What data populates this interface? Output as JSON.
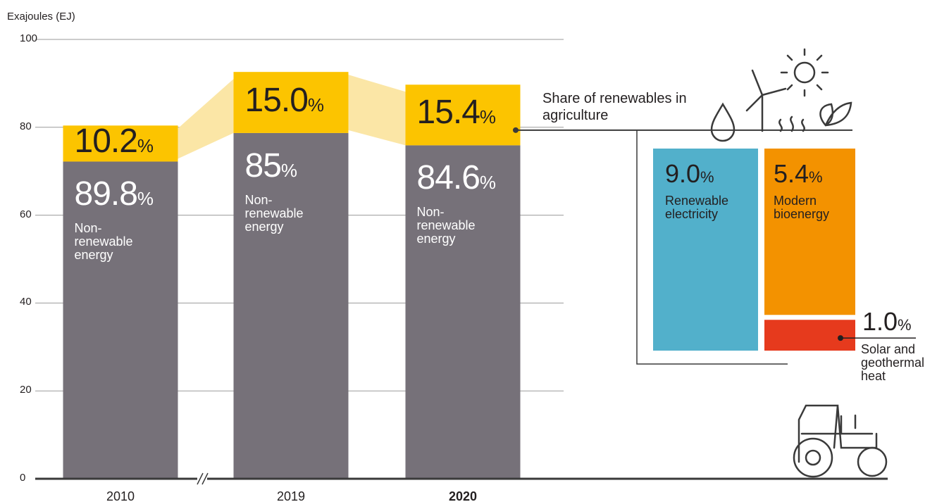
{
  "chart_data": {
    "type": "bar",
    "stacked": true,
    "y_label": "Exajoules (EJ)",
    "ylim": [
      0,
      100
    ],
    "yticks": [
      0,
      20,
      40,
      60,
      80,
      100
    ],
    "grid": true,
    "categories": [
      "2010",
      "2019",
      "2020"
    ],
    "bold_category": 2,
    "unit": "%",
    "connector_color": "#fbe6a6",
    "series": [
      {
        "name": "Non-renewable energy",
        "color": "#767179",
        "values": [
          72.2,
          78.7,
          75.9
        ],
        "share_labels": [
          "89.8",
          "85",
          "84.6"
        ]
      },
      {
        "color": "#fcc400",
        "values": [
          8.2,
          13.9,
          13.8
        ],
        "share_labels": [
          "10.2",
          "15.0",
          "15.4"
        ]
      }
    ],
    "breakdown": {
      "title": "Share of renewables in agriculture",
      "items": [
        {
          "value": 9.0,
          "label": "9.0",
          "name": "Renewable electricity",
          "color": "#52b0cb"
        },
        {
          "value": 5.4,
          "label": "5.4",
          "name": "Modern bioenergy",
          "color": "#f39200"
        },
        {
          "value": 1.0,
          "label": "1.0",
          "name": "Solar and geothermal heat",
          "color": "#e63a1d"
        }
      ]
    }
  }
}
